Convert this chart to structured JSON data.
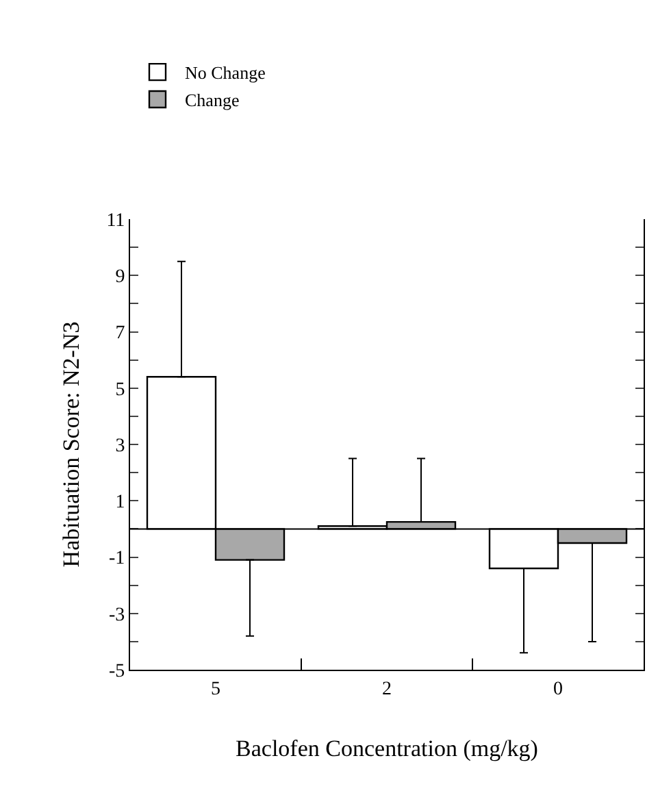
{
  "chart_data": {
    "type": "bar",
    "xlabel": "Baclofen Concentration (mg/kg)",
    "ylabel": "Habituation Score: N2-N3",
    "categories": [
      "5",
      "2",
      "0"
    ],
    "series": [
      {
        "name": "No Change",
        "color": "#ffffff",
        "values": [
          5.4,
          0.1,
          -1.4
        ],
        "errors": [
          [
            5.4,
            9.5
          ],
          [
            0.1,
            2.5
          ],
          [
            -4.4,
            -1.4
          ]
        ]
      },
      {
        "name": "Change",
        "color": "#a8a8a8",
        "values": [
          -1.1,
          0.25,
          -0.5
        ],
        "errors": [
          [
            -3.8,
            -1.1
          ],
          [
            0.25,
            2.5
          ],
          [
            -4.0,
            -0.5
          ]
        ]
      }
    ],
    "ylim": [
      -5,
      11
    ],
    "yticks": [
      -5,
      {
        "value": -4,
        "label": null
      },
      -3,
      {
        "value": -2,
        "label": null
      },
      -1,
      {
        "value": 0,
        "label": null
      },
      1,
      {
        "value": 2,
        "label": null
      },
      3,
      {
        "value": 4,
        "label": null
      },
      5,
      {
        "value": 6,
        "label": null
      },
      7,
      {
        "value": 8,
        "label": null
      },
      9,
      {
        "value": 10,
        "label": null
      },
      11
    ],
    "ref_lines": [
      {
        "axis": "y",
        "value": 0,
        "label": null,
        "color": "#000000"
      }
    ],
    "legend": "top left"
  }
}
